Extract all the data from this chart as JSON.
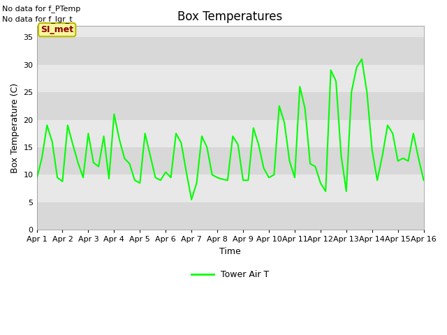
{
  "title": "Box Temperatures",
  "xlabel": "Time",
  "ylabel": "Box Temperature (C)",
  "ylim": [
    0,
    37
  ],
  "yticks": [
    0,
    5,
    10,
    15,
    20,
    25,
    30,
    35
  ],
  "text_no_data": [
    "No data for f_PTemp",
    "No data for f_lgr_t"
  ],
  "annotation_label": "SI_met",
  "legend_label": "Tower Air T",
  "line_color": "#00ff00",
  "fig_bg_color": "#ffffff",
  "plot_bg_color": "#e8e8e8",
  "band_colors": [
    "#d8d8d8",
    "#e8e8e8"
  ],
  "x_labels": [
    "Apr 1",
    "Apr 2",
    "Apr 3",
    "Apr 4",
    "Apr 5",
    "Apr 6",
    "Apr 7",
    "Apr 8",
    "Apr 9",
    "Apr 10",
    "Apr 11",
    "Apr 12",
    "Apr 13",
    "Apr 14",
    "Apr 15",
    "Apr 16"
  ],
  "x_values": [
    1,
    2,
    3,
    4,
    5,
    6,
    7,
    8,
    9,
    10,
    11,
    12,
    13,
    14,
    15,
    16
  ],
  "y_values": [
    9.3,
    13.0,
    19.0,
    16.0,
    9.5,
    8.8,
    19.0,
    15.5,
    12.2,
    9.5,
    17.5,
    12.2,
    11.5,
    17.0,
    9.3,
    21.0,
    16.5,
    13.0,
    12.0,
    9.0,
    8.5,
    17.5,
    13.5,
    9.5,
    9.0,
    10.5,
    9.5,
    17.5,
    15.8,
    10.5,
    5.5,
    8.5,
    17.0,
    15.0,
    10.0,
    9.5,
    9.2,
    9.0,
    17.0,
    15.5,
    9.0,
    9.0,
    18.5,
    15.5,
    11.2,
    9.5,
    10.0,
    22.5,
    19.5,
    12.5,
    9.5,
    26.0,
    22.0,
    12.0,
    11.5,
    8.5,
    7.0,
    29.0,
    27.0,
    13.5,
    7.0,
    25.0,
    29.5,
    31.0,
    25.0,
    14.5,
    9.0,
    13.5,
    19.0,
    17.5,
    12.5,
    13.0,
    12.5,
    17.5,
    13.0,
    9.0
  ]
}
